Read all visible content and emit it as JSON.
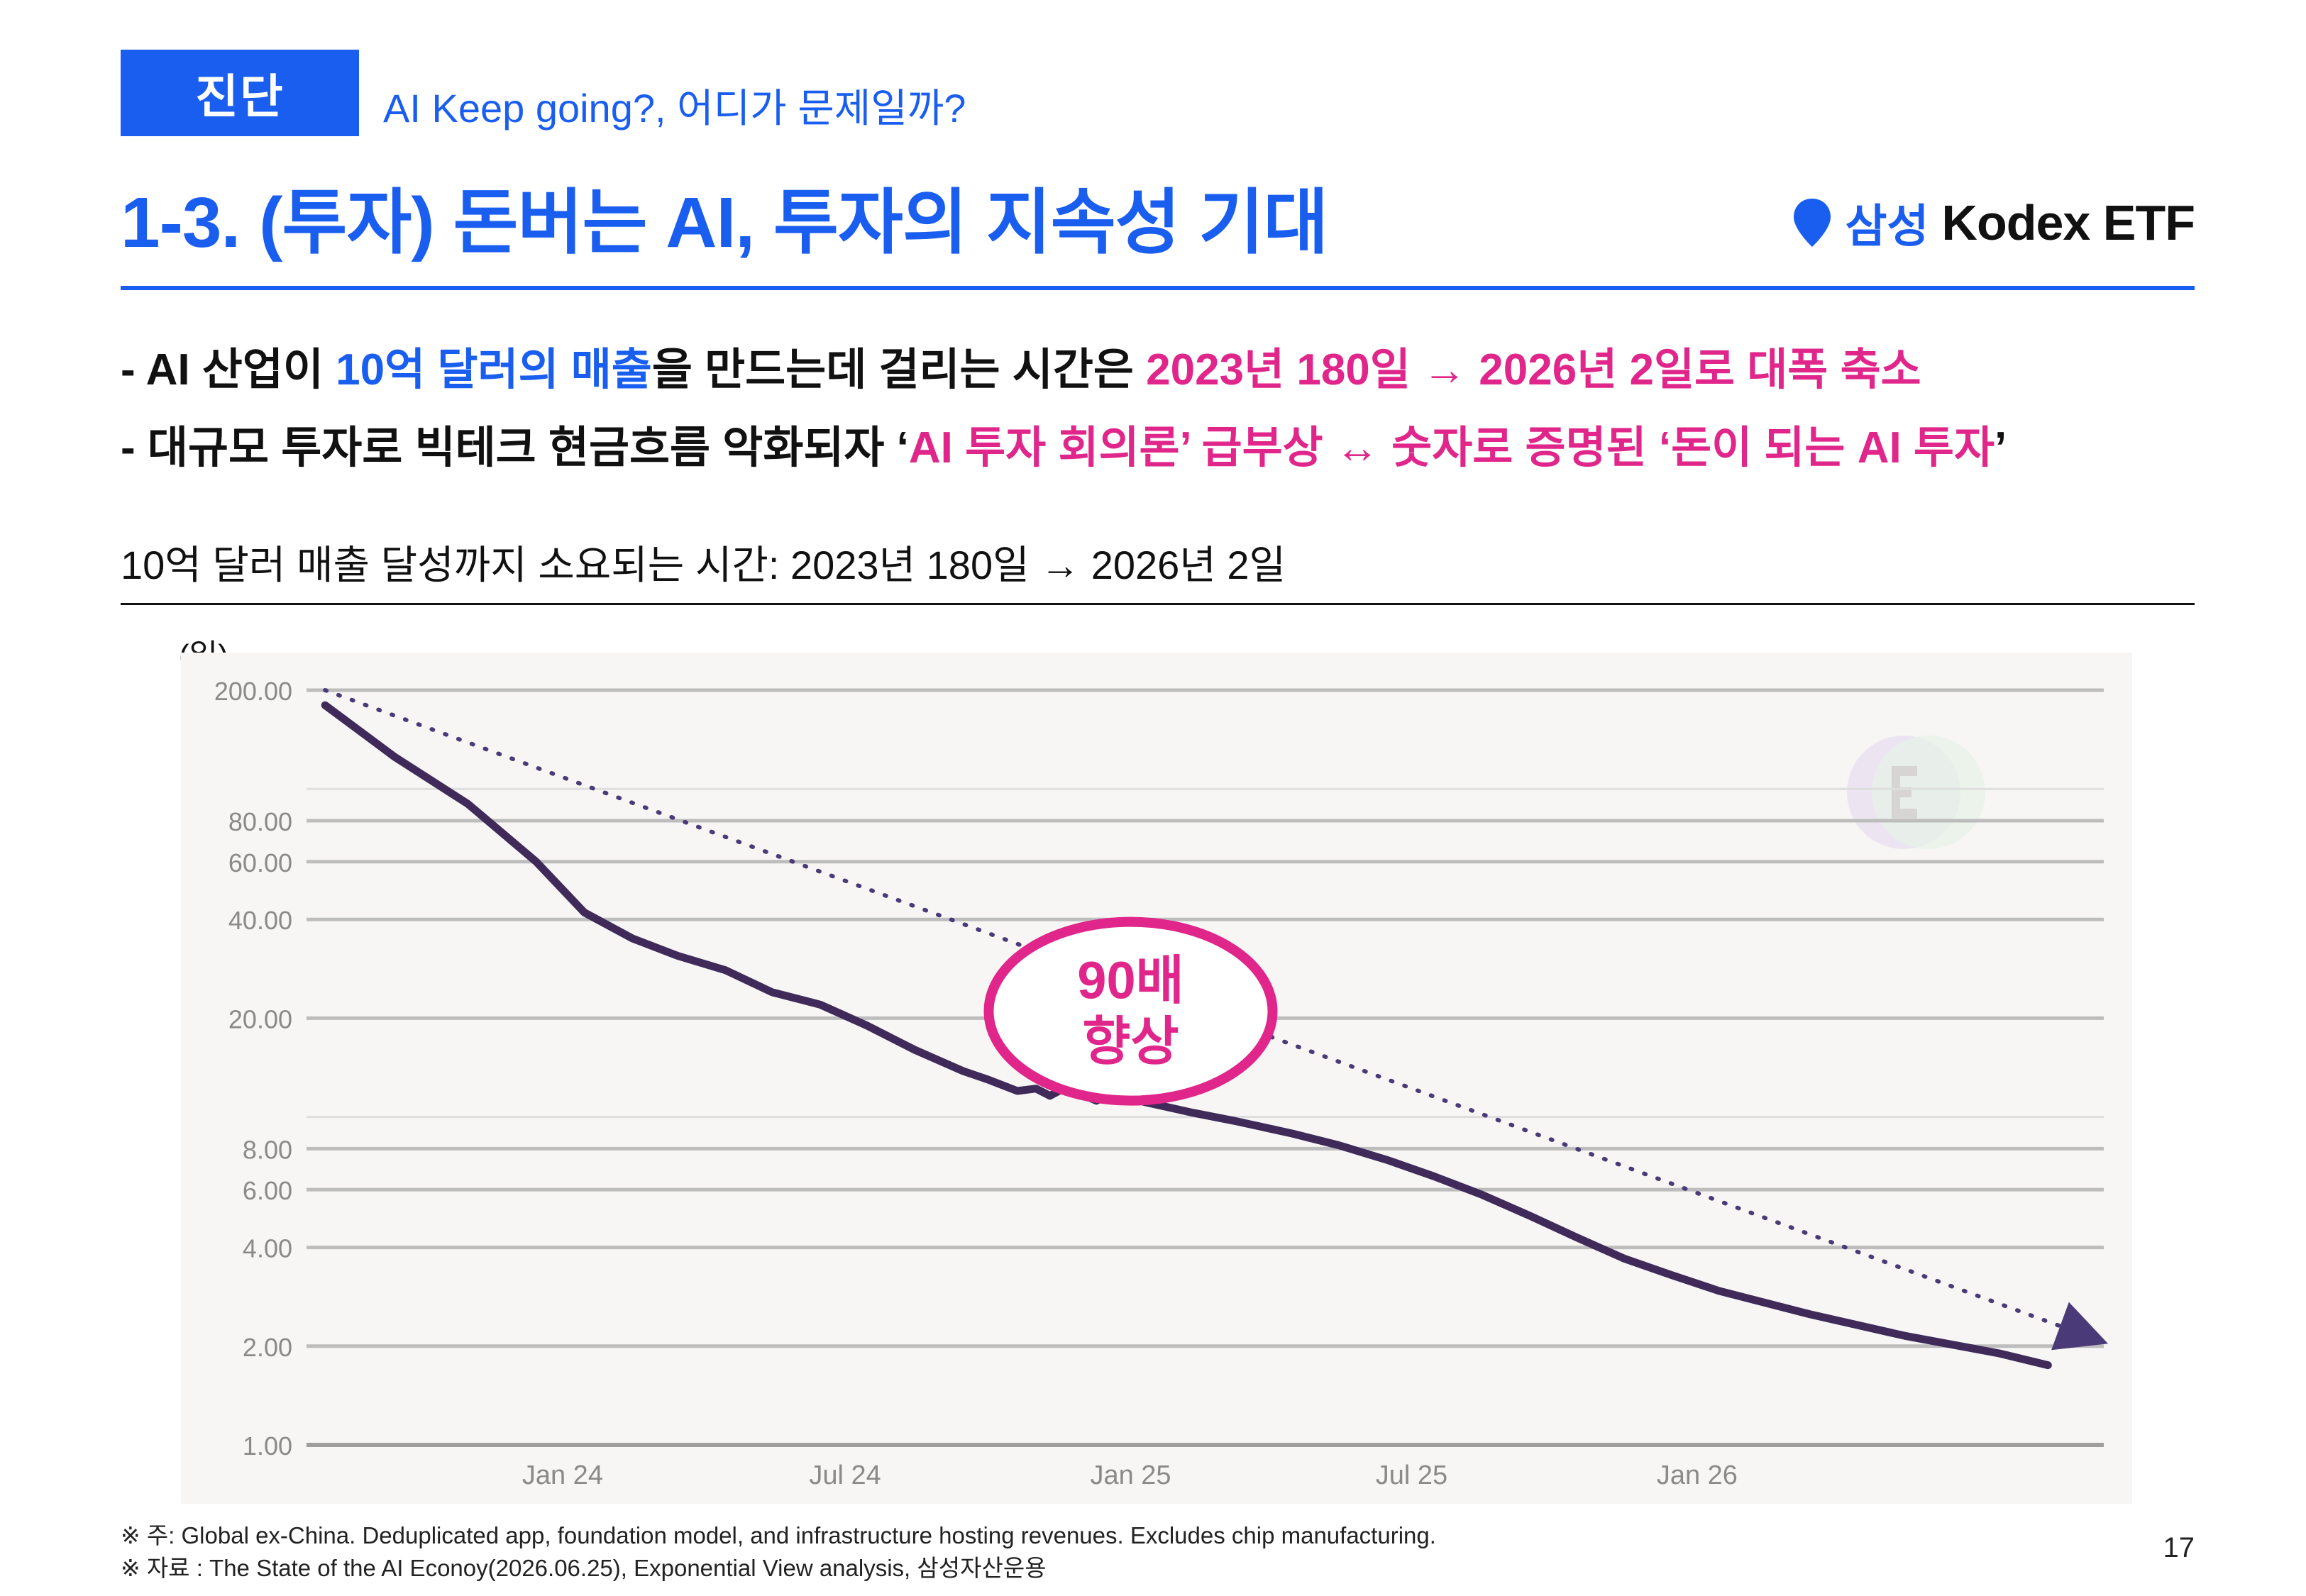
{
  "header": {
    "badge": "진단",
    "subtitle": "AI Keep going?, 어디가 문제일까?",
    "title": "1-3. (투자) 돈버는 AI, 투자의 지속성 기대",
    "brand_ko": "삼성",
    "brand_en": "Kodex ETF",
    "accent_color": "#1a5ef0",
    "highlight_color": "#e0268a"
  },
  "bullets": {
    "b1": {
      "prefix": "- AI 산업이 ",
      "blue": "10억 달러의 매출",
      "mid": "을 만드는데 걸리는 시간은 ",
      "pink": "2023년 180일 → 2026년 2일로 대폭 축소"
    },
    "b2": {
      "prefix": "- 대규모 투자로 빅테크 현금흐름 악화되자 ‘",
      "pink1": "AI 투자 회의론’ 급부상 ↔ 숫자로 증명된 ‘돈이 되는 AI 투자",
      "suffix": "’"
    }
  },
  "chart_heading": "10억 달러 매출 달성까지 소요되는 시간: 2023년 180일 → 2026년 2일",
  "chart_data": {
    "type": "line",
    "unit_label": "(일)",
    "y_scale": "log",
    "ylim": [
      1,
      200
    ],
    "yticks": [
      1,
      2,
      4,
      6,
      8,
      20,
      40,
      60,
      80,
      200
    ],
    "ytick_labels": [
      "1.00",
      "2.00",
      "4.00",
      "6.00",
      "8.00",
      "20.00",
      "40.00",
      "60.00",
      "80.00",
      "200.00"
    ],
    "xlim": [
      "2023-07-20",
      "2026-09-20"
    ],
    "xticks": [
      "2024-01-01",
      "2024-07-01",
      "2025-01-01",
      "2025-07-01",
      "2026-01-01"
    ],
    "xtick_labels": [
      "Jan 24",
      "Jul 24",
      "Jan 25",
      "Jul 25",
      "Jan 26"
    ],
    "grid": true,
    "series": [
      {
        "color": "#3f2a5a",
        "style": "solid",
        "points": [
          [
            "2023-08-01",
            180
          ],
          [
            "2023-09-15",
            125
          ],
          [
            "2023-11-01",
            90
          ],
          [
            "2023-12-15",
            60
          ],
          [
            "2024-01-15",
            42
          ],
          [
            "2024-02-15",
            35
          ],
          [
            "2024-03-15",
            31
          ],
          [
            "2024-04-15",
            28
          ],
          [
            "2024-05-15",
            24
          ],
          [
            "2024-06-15",
            22
          ],
          [
            "2024-07-15",
            19
          ],
          [
            "2024-08-15",
            16
          ],
          [
            "2024-09-15",
            13.8
          ],
          [
            "2024-10-01",
            13
          ],
          [
            "2024-10-20",
            12
          ],
          [
            "2024-11-01",
            12.2
          ],
          [
            "2024-11-10",
            11.6
          ],
          [
            "2024-11-20",
            12.3
          ],
          [
            "2024-12-10",
            11.2
          ],
          [
            "2024-12-20",
            11.8
          ],
          [
            "2025-01-10",
            11.1
          ],
          [
            "2025-02-10",
            10.3
          ],
          [
            "2025-03-10",
            9.7
          ],
          [
            "2025-04-15",
            8.9
          ],
          [
            "2025-05-15",
            8.2
          ],
          [
            "2025-06-15",
            7.4
          ],
          [
            "2025-07-15",
            6.6
          ],
          [
            "2025-08-15",
            5.8
          ],
          [
            "2025-09-15",
            5.0
          ],
          [
            "2025-10-15",
            4.3
          ],
          [
            "2025-11-15",
            3.7
          ],
          [
            "2025-12-15",
            3.3
          ],
          [
            "2026-01-15",
            2.95
          ],
          [
            "2026-03-15",
            2.5
          ],
          [
            "2026-05-15",
            2.15
          ],
          [
            "2026-07-15",
            1.9
          ],
          [
            "2026-08-15",
            1.75
          ]
        ]
      },
      {
        "color": "#4a3a78",
        "style": "dotted",
        "arrow": true,
        "points": [
          [
            "2023-08-01",
            200
          ],
          [
            "2026-09-15",
            2.1
          ]
        ]
      }
    ],
    "annotation": {
      "line1": "90배",
      "line2": "향상",
      "color": "#e0268a",
      "anchor_date": "2025-01-01",
      "anchor_value": 21
    }
  },
  "footnotes": {
    "f1": "※ 주: Global ex-China. Deduplicated app, foundation model, and infrastructure hosting revenues. Excludes chip manufacturing.",
    "f2": "※ 자료 : The State of the AI Econoy(2026.06.25), Exponential View analysis, 삼성자산운용"
  },
  "page_number": "17"
}
